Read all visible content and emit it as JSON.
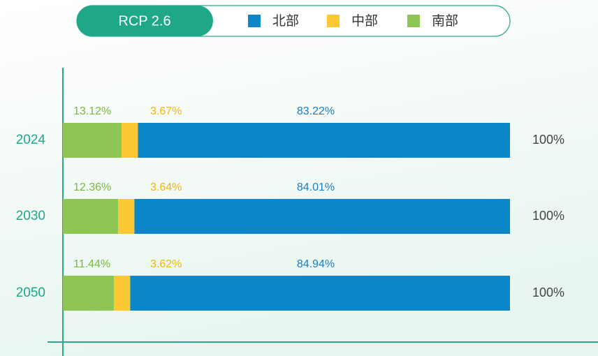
{
  "chart_data": {
    "type": "stacked-bar-horizontal",
    "scenario": "RCP 2.6",
    "categories": [
      "2024",
      "2030",
      "2050"
    ],
    "series": [
      {
        "name": "南部",
        "color": "#8dc653",
        "label_color": "#78bb3a",
        "values": [
          13.12,
          12.36,
          11.44
        ],
        "value_labels": [
          "13.12%",
          "12.36%",
          "11.44%"
        ]
      },
      {
        "name": "中部",
        "color": "#fcc934",
        "label_color": "#f2b705",
        "values": [
          3.67,
          3.64,
          3.62
        ],
        "value_labels": [
          "3.67%",
          "3.64%",
          "3.62%"
        ]
      },
      {
        "name": "北部",
        "color": "#0a86c9",
        "label_color": "#1a7ec2",
        "values": [
          83.22,
          84.01,
          84.94
        ],
        "value_labels": [
          "83.22%",
          "84.01%",
          "84.94%"
        ]
      }
    ],
    "totals": {
      "values": [
        100,
        100,
        100
      ],
      "value_labels": [
        "100%",
        "100%",
        "100%"
      ]
    },
    "xlim": [
      0,
      100
    ]
  }
}
